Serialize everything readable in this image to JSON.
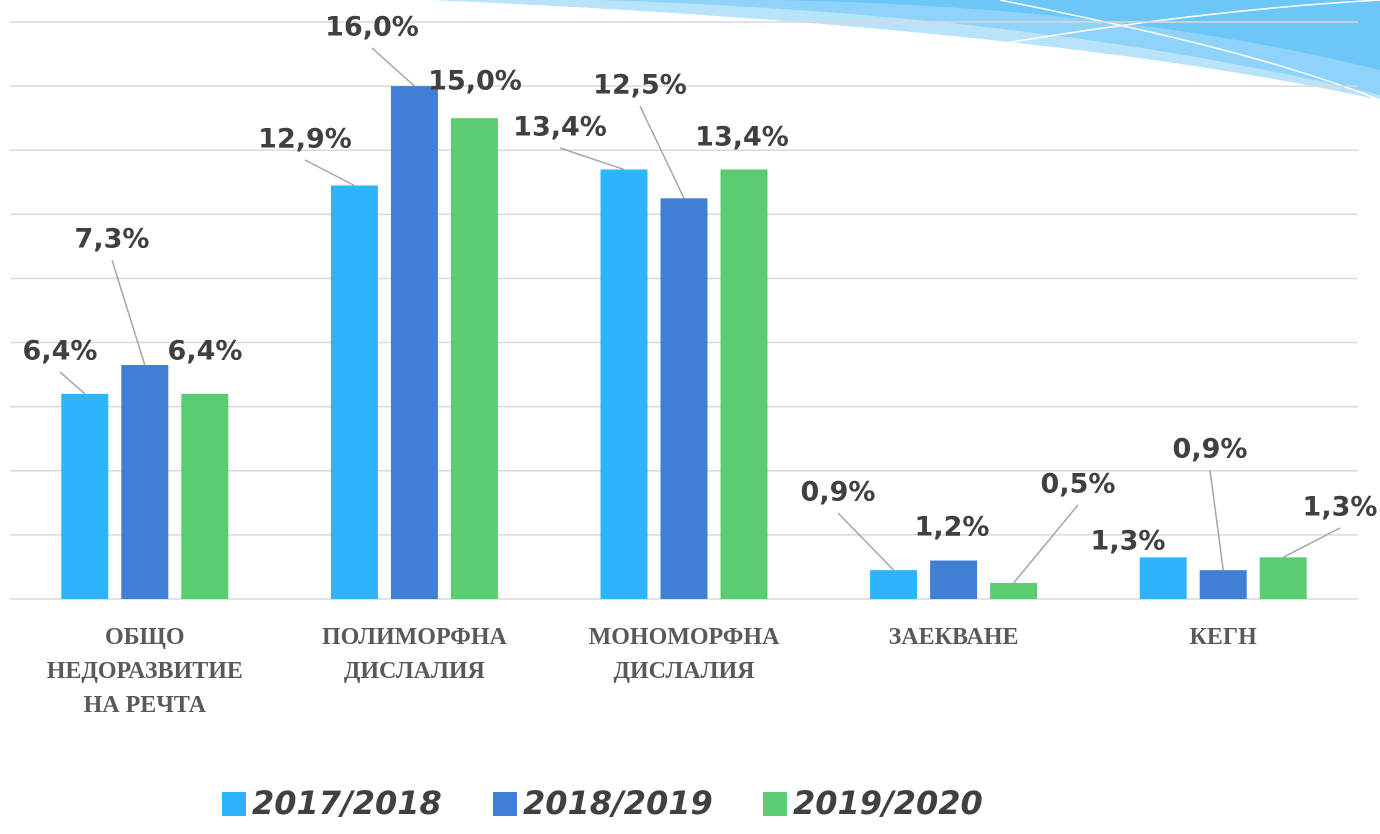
{
  "chart_data": {
    "type": "bar",
    "categories": [
      "ОБЩО\nНЕДОРАЗВИТИЕ\nНА РЕЧТА",
      "ПОЛИМОРФНА\nДИСЛАЛИЯ",
      "МОНОМОРФНА\nДИСЛАЛИЯ",
      "ЗАЕКВАНЕ",
      "КЕГН"
    ],
    "series": [
      {
        "name": "2017/2018",
        "color": "#2eb4fc",
        "values": [
          6.4,
          12.9,
          13.4,
          0.9,
          1.3
        ],
        "value_labels": [
          "6,4%",
          "12,9%",
          "13,4%",
          "0,9%",
          "1,3%"
        ]
      },
      {
        "name": "2018/2019",
        "color": "#3f80d4",
        "values": [
          7.3,
          16.0,
          12.5,
          1.2,
          0.9
        ],
        "value_labels": [
          "7,3%",
          "16,0%",
          "12,5%",
          "1,2%",
          "0,9%"
        ]
      },
      {
        "name": "2019/2020",
        "color": "#5acd72",
        "values": [
          6.4,
          15.0,
          13.4,
          0.5,
          1.3
        ],
        "value_labels": [
          "6,4%",
          "15,0%",
          "13,4%",
          "0,5%",
          "1,3%"
        ]
      }
    ],
    "ylim": [
      0,
      18
    ],
    "yticks": [
      0,
      2,
      4,
      6,
      8,
      10,
      12,
      14,
      16,
      18
    ],
    "grid": true,
    "legend": "bottom"
  }
}
